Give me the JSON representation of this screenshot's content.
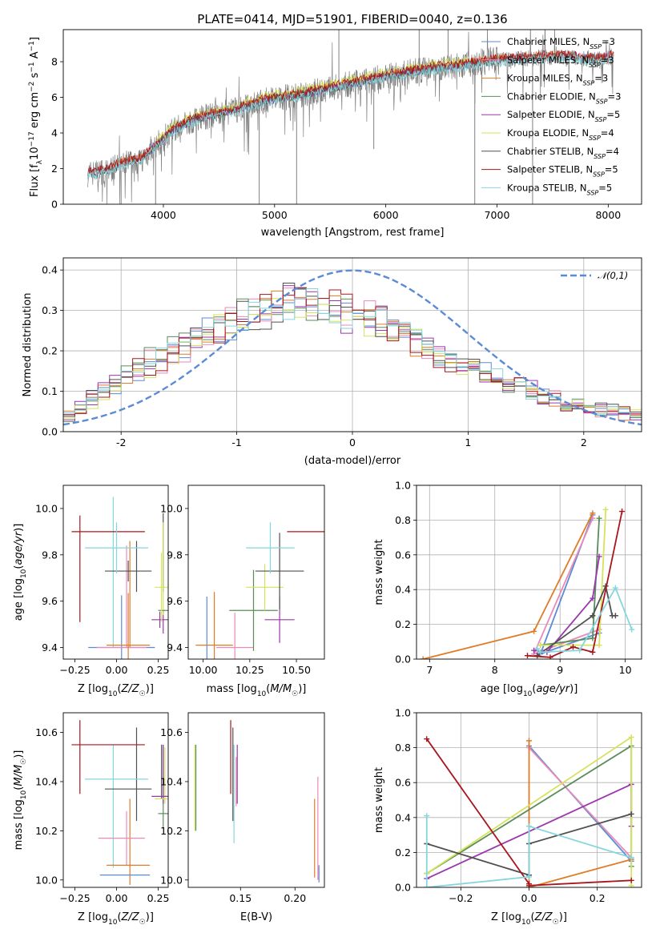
{
  "title": "PLATE=0414, MJD=51901, FIBERID=0040, z=0.136",
  "colors": {
    "Chabrier MILES": "#5b8bd6",
    "Salpeter MILES": "#e98ab8",
    "Kroupa MILES": "#e07b27",
    "Chabrier ELODIE": "#5a8c5a",
    "Salpeter ELODIE": "#9b37ad",
    "Kroupa ELODIE": "#d6e35a",
    "Chabrier STELIB": "#505050",
    "Salpeter STELIB": "#a8161c",
    "Kroupa STELIB": "#85d6de",
    "data": "#808080",
    "normal": "#5b8bd6"
  },
  "chart_data": [
    {
      "id": "spectrum",
      "type": "line",
      "xlabel": "wavelength [Angstrom, rest frame]",
      "ylabel": "Flux [f_λ 10^-17 erg cm^-2 s^-1 A^-1]",
      "xlim": [
        3100,
        8300
      ],
      "ylim": [
        0,
        9.8
      ],
      "xticks": [
        4000,
        5000,
        6000,
        7000,
        8000
      ],
      "yticks": [
        0,
        2,
        4,
        6,
        8
      ],
      "legend_position": "right",
      "legend": [
        "Chabrier MILES, N_SSP=3",
        "Salpeter MILES, N_SSP=3",
        "Kroupa MILES, N_SSP=3",
        "Chabrier ELODIE, N_SSP=3",
        "Salpeter ELODIE, N_SSP=5",
        "Kroupa ELODIE, N_SSP=4",
        "Chabrier STELIB, N_SSP=4",
        "Salpeter STELIB, N_SSP=5",
        "Kroupa STELIB, N_SSP=5"
      ],
      "legend_series": [
        "Chabrier MILES",
        "Salpeter MILES",
        "Kroupa MILES",
        "Chabrier ELODIE",
        "Salpeter ELODIE",
        "Kroupa ELODIE",
        "Chabrier STELIB",
        "Salpeter STELIB",
        "Kroupa STELIB"
      ],
      "continuum": {
        "x": [
          3320,
          3500,
          3650,
          3800,
          3950,
          4100,
          4300,
          4600,
          4900,
          5200,
          5500,
          5800,
          6100,
          6400,
          6700,
          7000,
          7300,
          7600,
          7900,
          8050
        ],
        "y": [
          1.7,
          1.9,
          2.3,
          2.5,
          3.4,
          4.2,
          4.8,
          5.2,
          5.8,
          6.1,
          6.5,
          6.9,
          7.3,
          7.6,
          7.8,
          8.1,
          8.2,
          8.3,
          8.1,
          8.3
        ]
      },
      "data_spikes": [
        {
          "x": 4862,
          "y": 0.0
        },
        {
          "x": 5198,
          "y": 0.0
        },
        {
          "x": 5578,
          "y": 9.8
        },
        {
          "x": 5892,
          "y": 3.1
        },
        {
          "x": 6300,
          "y": 9.8
        },
        {
          "x": 6560,
          "y": 9.8
        },
        {
          "x": 6800,
          "y": 0.0
        },
        {
          "x": 7320,
          "y": 0.0
        },
        {
          "x": 3620,
          "y": 0.0
        },
        {
          "x": 3930,
          "y": 0.0
        }
      ]
    },
    {
      "id": "residuals",
      "type": "bar",
      "xlabel": "(data-model)/error",
      "ylabel": "Normed distribution",
      "xlim": [
        -2.5,
        2.5
      ],
      "ylim": [
        0,
        0.43
      ],
      "xticks": [
        -2,
        -1,
        0,
        1,
        2
      ],
      "yticks": [
        0.0,
        0.1,
        0.2,
        0.3,
        0.4
      ],
      "grid": true,
      "legend": "𝒩(0,1)",
      "legend_position": "top-right",
      "bins": [
        -2.5,
        2.5,
        50
      ],
      "envelope": [
        0.045,
        0.06,
        0.08,
        0.1,
        0.12,
        0.14,
        0.16,
        0.17,
        0.18,
        0.2,
        0.21,
        0.23,
        0.24,
        0.25,
        0.27,
        0.28,
        0.29,
        0.3,
        0.31,
        0.32,
        0.32,
        0.31,
        0.3,
        0.3,
        0.29,
        0.28,
        0.28,
        0.27,
        0.26,
        0.25,
        0.23,
        0.21,
        0.19,
        0.17,
        0.16,
        0.15,
        0.14,
        0.13,
        0.12,
        0.11,
        0.1,
        0.09,
        0.08,
        0.07,
        0.065,
        0.06,
        0.055,
        0.05,
        0.045,
        0.04
      ]
    },
    {
      "id": "age-vs-Z",
      "type": "scatter",
      "xlabel": "Z [log10(Z/Z☉)]",
      "ylabel": "age [log10(age/yr)]",
      "xlim": [
        -0.32,
        0.31
      ],
      "ylim": [
        9.35,
        10.1
      ],
      "xticks": [
        -0.25,
        0.0,
        0.25
      ],
      "xticklabels": [
        "−0.25",
        "0.00",
        "0.25"
      ],
      "yticks": [
        9.4,
        9.6,
        9.8,
        10.0
      ],
      "points": [
        {
          "series": "Chabrier MILES",
          "x": 0.03,
          "xerr": 0.2,
          "y": 9.4,
          "yerr": 0.45
        },
        {
          "series": "Salpeter MILES",
          "x": 0.03,
          "xerr": 0.15,
          "y": 9.4,
          "yerr": 0.0
        },
        {
          "series": "Kroupa MILES",
          "x": 0.07,
          "xerr": 0.13,
          "y": 9.41,
          "yerr": 0.45
        },
        {
          "series": "Chabrier ELODIE",
          "x": 0.28,
          "xerr": 0.03,
          "y": 9.56,
          "yerr": 0.0
        },
        {
          "series": "Salpeter ELODIE",
          "x": 0.26,
          "xerr": 0.05,
          "y": 9.52,
          "yerr": 0.07
        },
        {
          "series": "Kroupa ELODIE",
          "x": 0.27,
          "xerr": 0.04,
          "y": 9.66,
          "yerr": 0.3
        },
        {
          "series": "Chabrier STELIB",
          "x": 0.07,
          "xerr": 0.14,
          "y": 9.73,
          "yerr": 0.09
        },
        {
          "series": "Salpeter STELIB",
          "x": -0.05,
          "xerr": 0.22,
          "y": 9.9,
          "yerr": 0.0
        },
        {
          "series": "Kroupa STELIB",
          "x": 0.0,
          "xerr": 0.19,
          "y": 9.83,
          "yerr": 0.22
        }
      ],
      "vlines": [
        {
          "series": "Chabrier STELIB",
          "x": 0.28,
          "y0": 9.64,
          "y1": 9.98
        },
        {
          "series": "Salpeter STELIB",
          "x": -0.22,
          "y0": 9.51,
          "y1": 9.97
        },
        {
          "series": "Salpeter ELODIE",
          "x": 0.28,
          "y0": 9.46,
          "y1": 9.56
        },
        {
          "series": "Kroupa STELIB",
          "x": -0.02,
          "y0": 9.4,
          "y1": 10.05
        },
        {
          "series": "Kroupa MILES",
          "x": 0.08,
          "y0": 9.4,
          "y1": 9.86
        },
        {
          "series": "Salpeter MILES",
          "x": 0.06,
          "y0": 9.4,
          "y1": 9.84
        },
        {
          "series": "Chabrier STELIB",
          "x": 0.12,
          "y0": 9.64,
          "y1": 9.86
        },
        {
          "series": "Kroupa ELODIE",
          "x": 0.28,
          "y0": 9.54,
          "y1": 9.94
        }
      ]
    },
    {
      "id": "age-vs-mass",
      "type": "scatter",
      "xlabel": "mass [log10(M/M☉)]",
      "ylabel": "",
      "xlim": [
        9.92,
        10.65
      ],
      "ylim": [
        9.35,
        10.1
      ],
      "xticks": [
        10.0,
        10.25,
        10.5
      ],
      "xticklabels": [
        "10.00",
        "10.25",
        "10.50"
      ],
      "yticks": [
        9.4,
        9.6,
        9.8,
        10.0
      ],
      "points": [
        {
          "series": "Chabrier MILES",
          "x": 10.02,
          "xerr": 0.0,
          "y": 9.4,
          "yerr": 0.44
        },
        {
          "series": "Salpeter MILES",
          "x": 10.17,
          "xerr": 0.1,
          "y": 9.4,
          "yerr": 0.3
        },
        {
          "series": "Kroupa MILES",
          "x": 10.06,
          "xerr": 0.1,
          "y": 9.41,
          "yerr": 0.46
        },
        {
          "series": "Chabrier ELODIE",
          "x": 10.27,
          "xerr": 0.13,
          "y": 9.56,
          "yerr": 0.35
        },
        {
          "series": "Salpeter ELODIE",
          "x": 10.41,
          "xerr": 0.08,
          "y": 9.52,
          "yerr": 0.2
        },
        {
          "series": "Kroupa ELODIE",
          "x": 10.33,
          "xerr": 0.1,
          "y": 9.66,
          "yerr": 0.2
        },
        {
          "series": "Chabrier STELIB",
          "x": 10.41,
          "xerr": 0.13,
          "y": 9.73,
          "yerr": 0.33
        },
        {
          "series": "Salpeter STELIB",
          "x": 10.55,
          "xerr": 0.1,
          "y": 9.9,
          "yerr": 0.0
        },
        {
          "series": "Kroupa STELIB",
          "x": 10.36,
          "xerr": 0.13,
          "y": 9.83,
          "yerr": 0.22
        }
      ]
    },
    {
      "id": "weight-vs-age",
      "type": "line",
      "xlabel": "age [log10(age/yr)]",
      "ylabel": "mass weight",
      "xlim": [
        6.8,
        10.25
      ],
      "ylim": [
        0,
        1
      ],
      "xticks": [
        7,
        8,
        9,
        10
      ],
      "yticks": [
        0.0,
        0.2,
        0.4,
        0.6,
        0.8,
        1.0
      ],
      "grid": true,
      "series": [
        {
          "name": "Chabrier MILES",
          "x": [
            9.5,
            8.7,
            9.6
          ],
          "y": [
            0.83,
            0.03,
            0.15
          ]
        },
        {
          "name": "Salpeter MILES",
          "x": [
            9.5,
            8.6,
            9.6
          ],
          "y": [
            0.81,
            0.03,
            0.17
          ]
        },
        {
          "name": "Kroupa MILES",
          "x": [
            6.9,
            8.6,
            9.5
          ],
          "y": [
            0.0,
            0.16,
            0.84
          ]
        },
        {
          "name": "Chabrier ELODIE",
          "x": [
            8.7,
            9.5,
            9.6
          ],
          "y": [
            0.08,
            0.12,
            0.81
          ]
        },
        {
          "name": "Salpeter ELODIE",
          "x": [
            8.6,
            8.8,
            9.5,
            9.6
          ],
          "y": [
            0.05,
            0.04,
            0.35,
            0.59
          ]
        },
        {
          "name": "Kroupa ELODIE",
          "x": [
            8.7,
            9.6,
            9.7
          ],
          "y": [
            0.08,
            0.08,
            0.86
          ]
        },
        {
          "name": "Chabrier STELIB",
          "x": [
            8.65,
            9.5,
            9.7,
            9.8,
            9.85
          ],
          "y": [
            0.02,
            0.25,
            0.42,
            0.25,
            0.25
          ]
        },
        {
          "name": "Salpeter STELIB",
          "x": [
            8.5,
            8.85,
            9.2,
            9.5,
            9.95
          ],
          "y": [
            0.02,
            0.01,
            0.07,
            0.04,
            0.85
          ]
        },
        {
          "name": "Kroupa STELIB",
          "x": [
            8.65,
            8.7,
            9.3,
            9.85,
            10.1
          ],
          "y": [
            0.06,
            0.04,
            0.05,
            0.41,
            0.17
          ]
        }
      ]
    },
    {
      "id": "mass-vs-Z",
      "type": "scatter",
      "xlabel": "Z [log10(Z/Z☉)]",
      "ylabel": "mass [log10(M/M☉)]",
      "xlim": [
        -0.32,
        0.31
      ],
      "ylim": [
        9.97,
        10.68
      ],
      "xticks": [
        -0.25,
        0.0,
        0.25
      ],
      "xticklabels": [
        "−0.25",
        "0.00",
        "0.25"
      ],
      "yticks": [
        10.0,
        10.2,
        10.4,
        10.6
      ],
      "points": [
        {
          "series": "Chabrier MILES",
          "x": 0.05,
          "xerr": 0.15,
          "y": 10.02,
          "yerr": 0.0
        },
        {
          "series": "Salpeter MILES",
          "x": 0.03,
          "xerr": 0.14,
          "y": 10.17,
          "yerr": 0.0
        },
        {
          "series": "Kroupa MILES",
          "x": 0.07,
          "xerr": 0.13,
          "y": 10.06,
          "yerr": 0.0
        },
        {
          "series": "Chabrier ELODIE",
          "x": 0.28,
          "xerr": 0.03,
          "y": 10.27,
          "yerr": 0.0
        },
        {
          "series": "Salpeter ELODIE",
          "x": 0.26,
          "xerr": 0.05,
          "y": 10.34,
          "yerr": 0.0
        },
        {
          "series": "Kroupa ELODIE",
          "x": 0.27,
          "xerr": 0.04,
          "y": 10.33,
          "yerr": 0.0
        },
        {
          "series": "Chabrier STELIB",
          "x": 0.07,
          "xerr": 0.14,
          "y": 10.37,
          "yerr": 0.0
        },
        {
          "series": "Salpeter STELIB",
          "x": -0.05,
          "xerr": 0.22,
          "y": 10.55,
          "yerr": 0.0
        },
        {
          "series": "Kroupa STELIB",
          "x": 0.0,
          "xerr": 0.19,
          "y": 10.41,
          "yerr": 0.0
        }
      ],
      "vlines": [
        {
          "series": "Salpeter STELIB",
          "x": -0.22,
          "y0": 10.35,
          "y1": 10.65
        },
        {
          "series": "Kroupa STELIB",
          "x": -0.02,
          "y0": 10.05,
          "y1": 10.55
        },
        {
          "series": "Chabrier STELIB",
          "x": 0.12,
          "y0": 10.24,
          "y1": 10.62
        },
        {
          "series": "Kroupa MILES",
          "x": 0.08,
          "y0": 9.98,
          "y1": 10.33
        },
        {
          "series": "Salpeter MILES",
          "x": 0.06,
          "y0": 10.06,
          "y1": 10.28
        },
        {
          "series": "Chabrier ELODIE",
          "x": 0.28,
          "y0": 10.21,
          "y1": 10.55
        },
        {
          "series": "Salpeter ELODIE",
          "x": 0.28,
          "y0": 10.31,
          "y1": 10.55
        },
        {
          "series": "Kroupa ELODIE",
          "x": 0.29,
          "y0": 10.31,
          "y1": 10.54
        },
        {
          "series": "Chabrier STELIB",
          "x": 0.27,
          "y0": 10.33,
          "y1": 10.55
        }
      ]
    },
    {
      "id": "mass-vs-EBV",
      "type": "scatter",
      "xlabel": "E(B-V)",
      "ylabel": "",
      "xlim": [
        0.102,
        0.227
      ],
      "ylim": [
        9.97,
        10.68
      ],
      "xticks": [
        0.15,
        0.2
      ],
      "xticklabels": [
        "0.15",
        "0.20"
      ],
      "yticks": [
        10.0,
        10.2,
        10.4,
        10.6
      ],
      "vlines": [
        {
          "series": "Kroupa ELODIE",
          "x": 0.108,
          "y0": 10.2,
          "y1": 10.55
        },
        {
          "series": "Chabrier ELODIE",
          "x": 0.109,
          "y0": 10.2,
          "y1": 10.55
        },
        {
          "series": "Salpeter STELIB",
          "x": 0.141,
          "y0": 10.35,
          "y1": 10.65
        },
        {
          "series": "Chabrier STELIB",
          "x": 0.143,
          "y0": 10.24,
          "y1": 10.62
        },
        {
          "series": "Kroupa STELIB",
          "x": 0.144,
          "y0": 10.15,
          "y1": 10.55
        },
        {
          "series": "Salpeter ELODIE",
          "x": 0.147,
          "y0": 10.31,
          "y1": 10.55
        },
        {
          "series": "Salpeter MILES",
          "x": 0.146,
          "y0": 10.3,
          "y1": 10.5
        },
        {
          "series": "Kroupa MILES",
          "x": 0.218,
          "y0": 10.01,
          "y1": 10.33
        },
        {
          "series": "Salpeter MILES",
          "x": 0.221,
          "y0": 10.0,
          "y1": 10.42
        },
        {
          "series": "Chabrier MILES",
          "x": 0.222,
          "y0": 9.99,
          "y1": 10.06
        }
      ]
    },
    {
      "id": "weight-vs-Z",
      "type": "line",
      "xlabel": "Z [log10(Z/Z☉)]",
      "ylabel": "mass weight",
      "xlim": [
        -0.33,
        0.33
      ],
      "ylim": [
        0,
        1
      ],
      "xticks": [
        -0.2,
        0.0,
        0.2
      ],
      "xticklabels": [
        "−0.2",
        "0.0",
        "0.2"
      ],
      "yticks": [
        0.0,
        0.2,
        0.4,
        0.6,
        0.8,
        1.0
      ],
      "grid": true,
      "series": [
        {
          "name": "Chabrier MILES",
          "x": [
            0.0,
            0.3
          ],
          "y": [
            0.81,
            0.15
          ]
        },
        {
          "name": "Salpeter MILES",
          "x": [
            0.0,
            0.3
          ],
          "y": [
            0.8,
            0.17
          ]
        },
        {
          "name": "Kroupa MILES",
          "x": [
            0.0,
            0.0,
            0.3
          ],
          "y": [
            0.84,
            0.0,
            0.16
          ]
        },
        {
          "name": "Chabrier ELODIE",
          "x": [
            -0.3,
            0.3,
            0.3
          ],
          "y": [
            0.08,
            0.81,
            0.12
          ]
        },
        {
          "name": "Salpeter ELODIE",
          "x": [
            -0.3,
            0.3,
            0.3
          ],
          "y": [
            0.05,
            0.59,
            0.35
          ]
        },
        {
          "name": "Kroupa ELODIE",
          "x": [
            -0.3,
            0.3,
            0.3
          ],
          "y": [
            0.08,
            0.86,
            0.01
          ]
        },
        {
          "name": "Chabrier STELIB",
          "x": [
            -0.3,
            0.0,
            0.0,
            0.3
          ],
          "y": [
            0.25,
            0.07,
            0.25,
            0.42
          ]
        },
        {
          "name": "Salpeter STELIB",
          "x": [
            -0.3,
            0.0,
            0.0,
            0.3
          ],
          "y": [
            0.85,
            0.02,
            0.01,
            0.04
          ]
        },
        {
          "name": "Kroupa STELIB",
          "x": [
            -0.3,
            -0.3,
            0.0,
            0.0,
            0.3
          ],
          "y": [
            0.41,
            0.0,
            0.06,
            0.35,
            0.17
          ]
        }
      ]
    }
  ]
}
